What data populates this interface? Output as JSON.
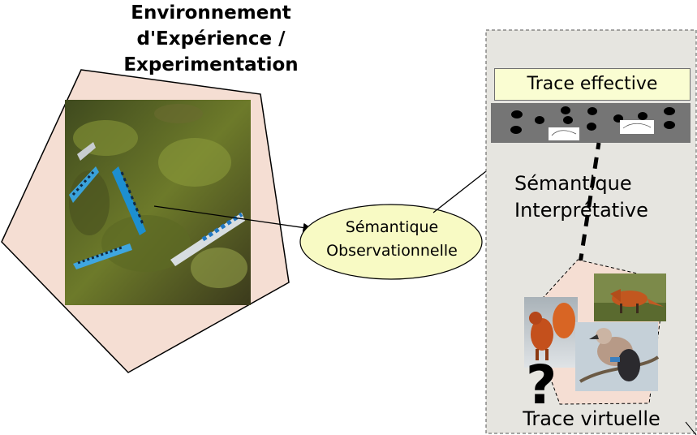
{
  "title_lines": [
    "Environnement",
    "d'Expérience /",
    "Experimentation"
  ],
  "observation_lines": [
    "Sémantique",
    "Observationnelle"
  ],
  "trace_effective": "Trace effective",
  "interpretation_lines": [
    "Sémantique",
    "Interprétative"
  ],
  "trace_virtuelle": "Trace virtuelle",
  "unknown_symbol": "?",
  "colors": {
    "pentagon_fill": "#f5ded3",
    "ellipse_fill": "#f8fac4",
    "panel_fill": "#e6e5e0",
    "trace_box_fill": "#fafdd2",
    "track_strip": "#757575"
  }
}
